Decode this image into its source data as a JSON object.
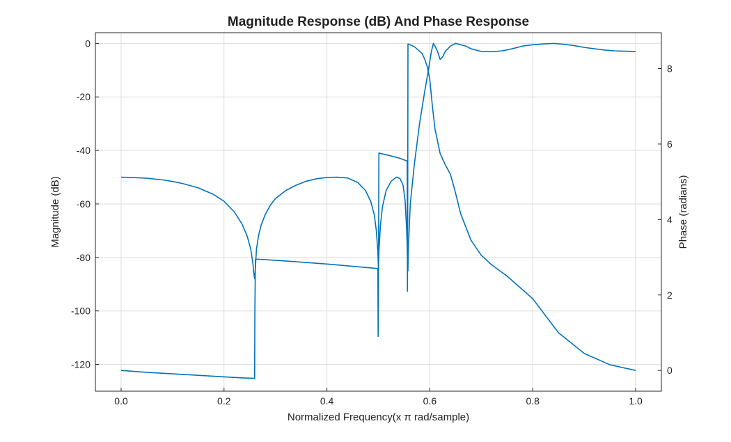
{
  "chart_data": {
    "type": "line",
    "title": "Magnitude Response (dB) And Phase Response",
    "xlabel": "Normalized Frequency(x π rad/sample)",
    "ylabel_left": "Magnitude (dB)",
    "ylabel_right": "Phase (radians)",
    "xlim": [
      -0.05,
      1.05
    ],
    "ylim_left": [
      -130,
      4
    ],
    "ylim_right": [
      -0.55,
      8.95
    ],
    "grid": true,
    "legend": "none",
    "color": "#0072BD",
    "x_ticks": [
      0.0,
      0.2,
      0.4,
      0.6,
      0.8,
      1.0
    ],
    "x_tick_labels": [
      "0.0",
      "0.2",
      "0.4",
      "0.6",
      "0.8",
      "1.0"
    ],
    "y_ticks_left": [
      0,
      -20,
      -40,
      -60,
      -80,
      -100,
      -120
    ],
    "y_tick_labels_left": [
      "0",
      "-20",
      "-40",
      "-60",
      "-80",
      "-100",
      "-120"
    ],
    "y_ticks_right": [
      0,
      2,
      4,
      6,
      8
    ],
    "y_tick_labels_right": [
      "0",
      "2",
      "4",
      "6",
      "8"
    ],
    "series": [
      {
        "name": "Magnitude (dB)",
        "axis": "left",
        "x": [
          0.0,
          0.02,
          0.05,
          0.08,
          0.1,
          0.12,
          0.15,
          0.18,
          0.2,
          0.22,
          0.235,
          0.245,
          0.252,
          0.256,
          0.258,
          0.2595,
          0.261,
          0.263,
          0.267,
          0.272,
          0.28,
          0.29,
          0.3,
          0.32,
          0.34,
          0.36,
          0.38,
          0.4,
          0.42,
          0.44,
          0.46,
          0.475,
          0.485,
          0.492,
          0.496,
          0.499,
          0.5,
          0.501,
          0.504,
          0.508,
          0.515,
          0.525,
          0.535,
          0.542,
          0.548,
          0.552,
          0.555,
          0.557,
          0.5575,
          0.558,
          0.562,
          0.57,
          0.58,
          0.59,
          0.598,
          0.603,
          0.607,
          0.61,
          0.615,
          0.62,
          0.625,
          0.63,
          0.64,
          0.65,
          0.66,
          0.67,
          0.68,
          0.7,
          0.72,
          0.74,
          0.76,
          0.78,
          0.8,
          0.82,
          0.84,
          0.86,
          0.88,
          0.9,
          0.92,
          0.94,
          0.96,
          0.98,
          1.0
        ],
        "values": [
          -50,
          -50.1,
          -50.4,
          -51,
          -51.6,
          -52.4,
          -54,
          -56.5,
          -59,
          -63,
          -67.5,
          -72,
          -77,
          -82,
          -86,
          -88,
          -84,
          -77,
          -72,
          -68,
          -64,
          -60.5,
          -58,
          -55,
          -53,
          -51.5,
          -50.6,
          -50.1,
          -50,
          -50.3,
          -52,
          -55,
          -59,
          -64,
          -70,
          -78,
          -84,
          -78,
          -68,
          -61,
          -55,
          -51.5,
          -50,
          -50.5,
          -53,
          -59,
          -70,
          -82,
          -85,
          -78,
          -60,
          -45,
          -30,
          -18,
          -9,
          -3,
          0,
          -1,
          -3,
          -6,
          -5,
          -3,
          -1,
          0,
          -0.5,
          -1,
          -2,
          -3,
          -3.1,
          -2.8,
          -2,
          -1,
          -0.5,
          -0.2,
          0,
          -0.3,
          -0.8,
          -1.5,
          -2,
          -2.5,
          -2.8,
          -2.9,
          -3
        ]
      },
      {
        "name": "Phase (radians)",
        "axis": "right",
        "x": [
          0.0,
          0.05,
          0.1,
          0.15,
          0.2,
          0.24,
          0.2595,
          0.26,
          0.261,
          0.263,
          0.3,
          0.35,
          0.4,
          0.45,
          0.499,
          0.4995,
          0.5,
          0.5005,
          0.501,
          0.52,
          0.54,
          0.556,
          0.5565,
          0.557,
          0.5575,
          0.558,
          0.57,
          0.585,
          0.59,
          0.595,
          0.6,
          0.605,
          0.61,
          0.62,
          0.625,
          0.63,
          0.64,
          0.65,
          0.66,
          0.68,
          0.7,
          0.72,
          0.75,
          0.8,
          0.85,
          0.9,
          0.95,
          1.0
        ],
        "values": [
          0.0,
          -0.05,
          -0.09,
          -0.13,
          -0.17,
          -0.2,
          -0.21,
          1.6,
          2.95,
          2.95,
          2.92,
          2.87,
          2.82,
          2.76,
          2.7,
          0.9,
          1.8,
          3.6,
          5.76,
          5.7,
          5.63,
          5.55,
          2.1,
          4.0,
          8.65,
          8.65,
          8.58,
          8.4,
          8.25,
          8.05,
          7.7,
          7.0,
          6.4,
          5.75,
          5.6,
          5.45,
          5.2,
          4.7,
          4.15,
          3.45,
          3.05,
          2.8,
          2.5,
          1.9,
          1.0,
          0.45,
          0.15,
          0.0
        ]
      }
    ]
  }
}
